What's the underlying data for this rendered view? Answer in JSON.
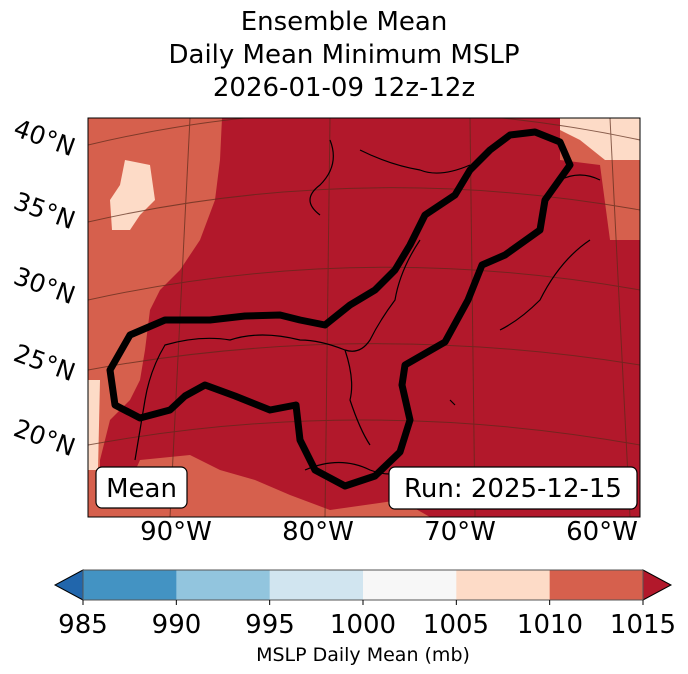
{
  "title": {
    "line1": "Ensemble Mean",
    "line2": "Daily Mean Minimum MSLP",
    "line3": "2026-01-09 12z-12z"
  },
  "lat_labels": [
    "40°N",
    "35°N",
    "30°N",
    "25°N",
    "20°N"
  ],
  "lon_labels": [
    "90°W",
    "80°W",
    "70°W",
    "60°W"
  ],
  "mean_box": "Mean",
  "run_box": "Run: 2025-12-15",
  "chart_data": {
    "type": "heatmap",
    "title": "Ensemble Mean Daily Mean Minimum MSLP 2026-01-09 12z-12z",
    "levels": [
      985,
      990,
      995,
      1000,
      1005,
      1010,
      1015
    ],
    "tick_labels": [
      "985",
      "990",
      "995",
      "1000",
      "1005",
      "1010",
      "1015"
    ],
    "colors": [
      "#4393c3",
      "#92c5de",
      "#d1e5f0",
      "#f7f7f7",
      "#fddbc7",
      "#d6604d"
    ],
    "under_color": "#2166ac",
    "over_color": "#b2182b",
    "colorbar_label": "MSLP Daily Mean (mb)",
    "extend": "both",
    "dominant_values": {
      "most_region": ">1015",
      "edges": "1010-1015",
      "patches": "1005-1010"
    }
  }
}
